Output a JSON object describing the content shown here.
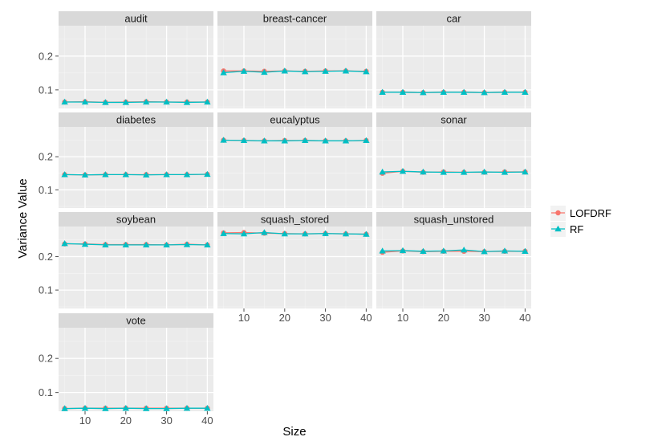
{
  "chart_data": {
    "type": "line",
    "xlabel": "Size",
    "ylabel": "Variance Value",
    "x": [
      5,
      10,
      15,
      20,
      25,
      30,
      35,
      40
    ],
    "xticks": [
      10,
      20,
      30,
      40
    ],
    "xlim": [
      3.5,
      41.5
    ],
    "yticks": [
      0.1,
      0.2
    ],
    "ytick_labels": [
      "0.1",
      "0.2"
    ],
    "ylim_by_row": [
      [
        0.045,
        0.29
      ],
      [
        0.045,
        0.29
      ],
      [
        0.045,
        0.29
      ],
      [
        0.045,
        0.29
      ]
    ],
    "grid": true,
    "legend_position": "right",
    "legend": [
      {
        "name": "LOFDRF",
        "color": "#F8766D",
        "marker": "circle"
      },
      {
        "name": "RF",
        "color": "#00BFC4",
        "marker": "triangle"
      }
    ],
    "panels": [
      {
        "name": "audit",
        "series": {
          "LOFDRF": [
            0.064,
            0.065,
            0.063,
            0.064,
            0.065,
            0.064,
            0.064,
            0.064
          ],
          "RF": [
            0.064,
            0.064,
            0.063,
            0.063,
            0.064,
            0.064,
            0.063,
            0.064
          ]
        }
      },
      {
        "name": "breast-cancer",
        "series": {
          "LOFDRF": [
            0.156,
            0.156,
            0.155,
            0.156,
            0.155,
            0.156,
            0.156,
            0.155
          ],
          "RF": [
            0.151,
            0.155,
            0.152,
            0.156,
            0.154,
            0.155,
            0.156,
            0.154
          ]
        }
      },
      {
        "name": "car",
        "series": {
          "LOFDRF": [
            0.093,
            0.093,
            0.092,
            0.093,
            0.093,
            0.092,
            0.093,
            0.093
          ],
          "RF": [
            0.093,
            0.093,
            0.092,
            0.093,
            0.093,
            0.092,
            0.093,
            0.093
          ]
        }
      },
      {
        "name": "diabetes",
        "series": {
          "LOFDRF": [
            0.146,
            0.145,
            0.146,
            0.146,
            0.146,
            0.146,
            0.146,
            0.147
          ],
          "RF": [
            0.146,
            0.145,
            0.146,
            0.146,
            0.145,
            0.146,
            0.146,
            0.147
          ]
        }
      },
      {
        "name": "eucalyptus",
        "series": {
          "LOFDRF": [
            0.25,
            0.249,
            0.248,
            0.249,
            0.249,
            0.248,
            0.248,
            0.249
          ],
          "RF": [
            0.25,
            0.249,
            0.248,
            0.248,
            0.249,
            0.248,
            0.248,
            0.249
          ]
        }
      },
      {
        "name": "sonar",
        "series": {
          "LOFDRF": [
            0.15,
            0.156,
            0.153,
            0.154,
            0.153,
            0.153,
            0.154,
            0.154
          ],
          "RF": [
            0.154,
            0.156,
            0.154,
            0.153,
            0.153,
            0.154,
            0.153,
            0.154
          ]
        }
      },
      {
        "name": "soybean",
        "series": {
          "LOFDRF": [
            0.238,
            0.238,
            0.236,
            0.236,
            0.236,
            0.235,
            0.237,
            0.235
          ],
          "RF": [
            0.239,
            0.237,
            0.235,
            0.235,
            0.235,
            0.235,
            0.236,
            0.235
          ]
        }
      },
      {
        "name": "squash_stored",
        "series": {
          "LOFDRF": [
            0.271,
            0.272,
            0.27,
            0.269,
            0.268,
            0.269,
            0.268,
            0.267
          ],
          "RF": [
            0.269,
            0.268,
            0.272,
            0.268,
            0.268,
            0.269,
            0.268,
            0.267
          ]
        }
      },
      {
        "name": "squash_unstored",
        "series": {
          "LOFDRF": [
            0.213,
            0.217,
            0.215,
            0.216,
            0.216,
            0.215,
            0.216,
            0.216
          ],
          "RF": [
            0.217,
            0.218,
            0.216,
            0.217,
            0.22,
            0.215,
            0.217,
            0.216
          ]
        }
      },
      {
        "name": "vote",
        "series": {
          "LOFDRF": [
            0.053,
            0.054,
            0.054,
            0.054,
            0.054,
            0.054,
            0.054,
            0.054
          ],
          "RF": [
            0.053,
            0.054,
            0.053,
            0.054,
            0.053,
            0.053,
            0.054,
            0.054
          ]
        }
      }
    ]
  }
}
